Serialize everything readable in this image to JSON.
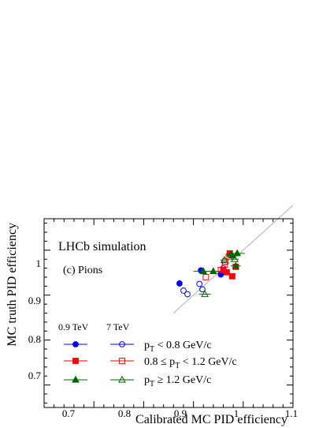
{
  "chart_data": {
    "type": "scatter",
    "xlabel": "Calibrated MC PID efficiency",
    "ylabel": "MC truth PID efficiency",
    "xlim": [
      0.6,
      1.1
    ],
    "ylim": [
      0.65,
      1.07
    ],
    "xticks": [
      0.7,
      0.8,
      0.9,
      1,
      1.1
    ],
    "yticks": [
      0.7,
      0.8,
      0.9,
      1
    ],
    "xtick_labels": [
      "0.7",
      "0.8",
      "0.9",
      "1",
      "1.1"
    ],
    "ytick_labels": [
      "0.7",
      "0.8",
      "0.9",
      "1"
    ],
    "annotations": {
      "experiment": "LHCb simulation",
      "panel": "(c) Pions"
    },
    "legend": {
      "placement": "bottom-left",
      "col_headers": [
        "0.9 TeV",
        "7 TeV"
      ],
      "rows": [
        {
          "label_pre": "p",
          "label_sub": "T",
          "label_post": " < 0.8 GeV/c"
        },
        {
          "label_pre": "0.8 ≤ p",
          "label_sub": "T",
          "label_post": " < 1.2 GeV/c"
        },
        {
          "label_pre": "p",
          "label_sub": "T",
          "label_post": " ≥ 1.2 GeV/c"
        }
      ]
    },
    "reference_line": {
      "x": [
        0.86,
        1.1
      ],
      "y": [
        0.86,
        1.1
      ],
      "color": "#bbbbbb"
    },
    "series": [
      {
        "marker": "circle",
        "filled": true,
        "color": "#0000ff",
        "points": [
          [
            0.872,
            0.926
          ],
          [
            0.915,
            0.955
          ],
          [
            0.955,
            0.946
          ]
        ],
        "xerr": [
          0.0,
          0.0,
          0.0
        ]
      },
      {
        "marker": "circle",
        "filled": false,
        "color": "#0000ff",
        "points": [
          [
            0.88,
            0.91
          ],
          [
            0.888,
            0.902
          ],
          [
            0.912,
            0.925
          ],
          [
            0.918,
            0.913
          ],
          [
            0.96,
            0.96
          ]
        ],
        "xerr": [
          0.0,
          0.0,
          0.0,
          0.0,
          0.0
        ]
      },
      {
        "marker": "square",
        "filled": true,
        "color": "#ff0000",
        "points": [
          [
            0.973,
            0.993
          ],
          [
            0.978,
            0.942
          ],
          [
            0.967,
            0.951
          ],
          [
            0.985,
            0.963
          ],
          [
            0.96,
            0.956
          ]
        ],
        "xerr": [
          0.0,
          0.0,
          0.0,
          0.0,
          0.0
        ]
      },
      {
        "marker": "square",
        "filled": false,
        "color": "#ff0000",
        "points": [
          [
            0.925,
            0.94
          ],
          [
            0.955,
            0.956
          ],
          [
            0.963,
            0.968
          ],
          [
            0.971,
            0.986
          ],
          [
            0.964,
            0.975
          ]
        ],
        "xerr": [
          0.0,
          0.0,
          0.0,
          0.0,
          0.0
        ]
      },
      {
        "marker": "triangle",
        "filled": true,
        "color": "#006400",
        "points": [
          [
            0.92,
            0.953
          ],
          [
            0.94,
            0.953
          ],
          [
            0.978,
            0.988
          ],
          [
            0.988,
            0.993
          ],
          [
            0.985,
            0.965
          ]
        ],
        "xerr": [
          0.02,
          0.015,
          0.01,
          0.015,
          0.01
        ]
      },
      {
        "marker": "triangle",
        "filled": false,
        "color": "#006400",
        "points": [
          [
            0.923,
            0.902
          ],
          [
            0.962,
            0.978
          ],
          [
            0.975,
            0.99
          ],
          [
            0.983,
            0.98
          ]
        ],
        "xerr": [
          0.012,
          0.008,
          0.008,
          0.008
        ]
      }
    ]
  }
}
